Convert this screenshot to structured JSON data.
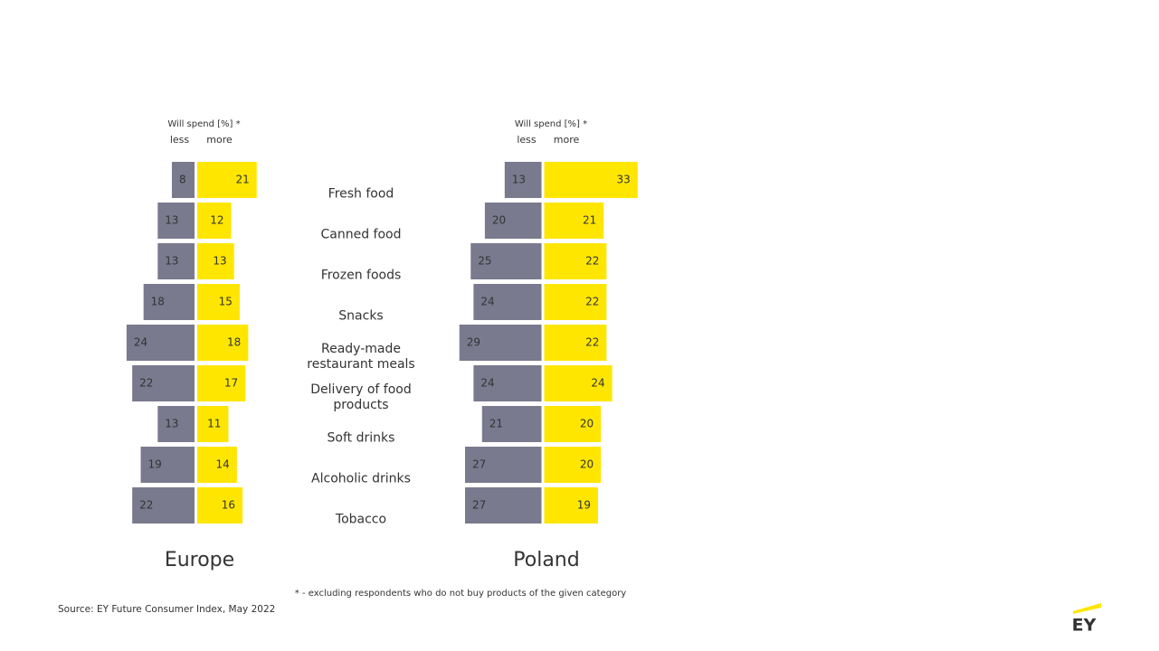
{
  "categories": [
    "Fresh food",
    "Canned food",
    "Frozen foods",
    "Snacks",
    "Ready-made restaurant meals",
    "Delivery of food products",
    "Soft drinks",
    "Alcoholic drinks",
    "Tobacco"
  ],
  "chart_data": [
    {
      "type": "butterfly",
      "title": "Europe",
      "header": "Will spend [%] *",
      "series": [
        {
          "name": "less",
          "color": "#7a7a8e",
          "values": [
            8,
            13,
            13,
            18,
            24,
            22,
            13,
            19,
            22
          ]
        },
        {
          "name": "more",
          "color": "#ffe600",
          "values": [
            21,
            12,
            13,
            15,
            18,
            17,
            11,
            14,
            16
          ]
        }
      ]
    },
    {
      "type": "butterfly",
      "title": "Poland",
      "header": "Will spend [%] *",
      "series": [
        {
          "name": "less",
          "color": "#7a7a8e",
          "values": [
            13,
            20,
            25,
            24,
            29,
            24,
            21,
            27,
            27
          ]
        },
        {
          "name": "more",
          "color": "#ffe600",
          "values": [
            33,
            21,
            22,
            22,
            22,
            24,
            20,
            20,
            19
          ]
        }
      ]
    }
  ],
  "footnote": "* - excluding respondents who do not buy products of the given category",
  "source": "Source: EY Future Consumer Index, May 2022",
  "logo": "EY"
}
